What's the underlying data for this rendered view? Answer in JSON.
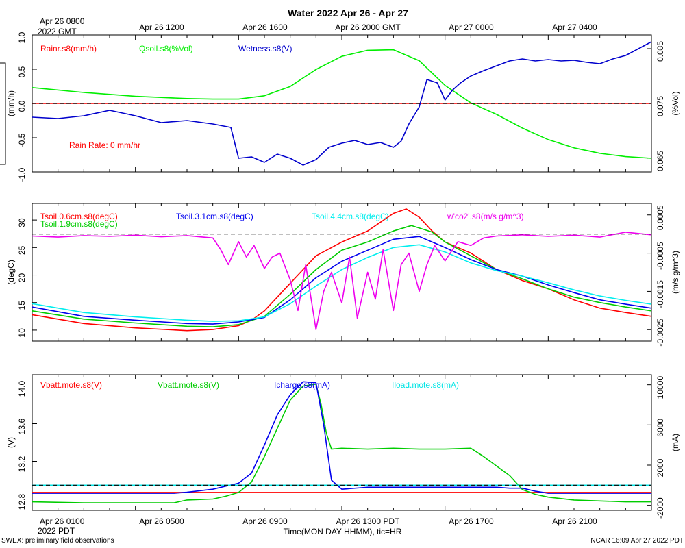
{
  "header": {
    "title": "Water 2022 Apr 26 - Apr 27",
    "top_start_label_1": "Apr 26 0800",
    "top_start_label_2": "2022 GMT",
    "top_ticks": [
      "Apr 26 1200",
      "Apr 26 1600",
      "Apr 26 2000 GMT",
      "Apr 27 0000",
      "Apr 27 0400"
    ]
  },
  "footer": {
    "bottom_start_label_1": "Apr 26 0100",
    "bottom_start_label_2": "2022 PDT",
    "bottom_ticks": [
      "Apr 26 0500",
      "Apr 26 0900",
      "Apr 26 1300 PDT",
      "Apr 26 1700",
      "Apr 26 2100"
    ],
    "xlabel": "Time(MON DAY HHMM), tic=HR",
    "left_note": "SWEX: preliminary field observations",
    "right_note": "NCAR 16:09 Apr 27 2022 PDT"
  },
  "chart_data": [
    {
      "type": "line",
      "panel": "water",
      "x_unit": "hours since Apr 26 0100 PDT",
      "xlim": [
        0,
        24
      ],
      "ylabel_left": "(mm/h)",
      "ylabel_right": "(%Vol)",
      "ylim_left": [
        -1.0,
        1.0
      ],
      "yticks_left": [
        "1.0",
        "0.5",
        "0.0",
        "-0.5",
        "-1.0"
      ],
      "ylim_right": [
        0.0625,
        0.0875
      ],
      "yticks_right": [
        "0.085",
        "0.075",
        "0.065"
      ],
      "annotation": "Rain Rate: 0 mm/hr",
      "series": [
        {
          "name": "Rainr.s8(mm/h)",
          "axis": "left",
          "color": "#ff0000",
          "x": [
            0,
            24
          ],
          "y": [
            0,
            0
          ]
        },
        {
          "name": "Qsoil.s8(%Vol)",
          "axis": "right",
          "color": "#00ee00",
          "x": [
            0,
            2,
            4,
            6,
            7,
            8,
            9,
            10,
            11,
            12,
            13,
            14,
            15,
            16,
            17,
            18,
            19,
            20,
            21,
            22,
            23,
            24
          ],
          "y": [
            0.0779,
            0.077,
            0.0763,
            0.0759,
            0.0758,
            0.0758,
            0.0764,
            0.0781,
            0.0812,
            0.0836,
            0.0847,
            0.0848,
            0.0828,
            0.0783,
            0.0751,
            0.073,
            0.0705,
            0.0684,
            0.0669,
            0.0659,
            0.0653,
            0.065
          ]
        },
        {
          "name": "Wetness.s8(V)",
          "axis": "left",
          "color": "#0000cc",
          "x": [
            0,
            1,
            2,
            3,
            4,
            5,
            6,
            7,
            7.7,
            8,
            8.5,
            9,
            9.5,
            10,
            10.5,
            11,
            11.5,
            12,
            12.5,
            13,
            13.5,
            14,
            14.3,
            14.6,
            15,
            15.3,
            15.7,
            16,
            16.3,
            16.6,
            17,
            17.5,
            18,
            18.5,
            19,
            19.5,
            20,
            20.5,
            21,
            21.5,
            22,
            22.5,
            23,
            23.5,
            24
          ],
          "y": [
            -0.2,
            -0.22,
            -0.18,
            -0.1,
            -0.18,
            -0.28,
            -0.25,
            -0.3,
            -0.35,
            -0.8,
            -0.78,
            -0.86,
            -0.74,
            -0.8,
            -0.9,
            -0.82,
            -0.64,
            -0.58,
            -0.54,
            -0.6,
            -0.57,
            -0.64,
            -0.55,
            -0.3,
            -0.05,
            0.35,
            0.3,
            0.05,
            0.2,
            0.3,
            0.4,
            0.48,
            0.55,
            0.62,
            0.65,
            0.62,
            0.64,
            0.62,
            0.63,
            0.6,
            0.58,
            0.65,
            0.7,
            0.8,
            0.9
          ]
        }
      ]
    },
    {
      "type": "line",
      "panel": "soil_temperature_and_flux",
      "x_unit": "hours since Apr 26 0100 PDT",
      "xlim": [
        0,
        24
      ],
      "ylabel_left": "(degC)",
      "ylabel_right": "(m/s g/m^3)",
      "ylim_left": [
        8.0,
        33.0
      ],
      "yticks_left": [
        "30",
        "25",
        "20",
        "15",
        "10"
      ],
      "ylim_right": [
        -0.0028,
        0.0008
      ],
      "yticks_right": [
        "0.0005",
        "-0.0005",
        "-0.0015",
        "-0.0025"
      ],
      "series": [
        {
          "name": "Tsoil.0.6cm.s8(degC)",
          "axis": "left",
          "color": "#ff0000",
          "x": [
            0,
            2,
            4,
            6,
            7,
            8,
            8.5,
            9,
            10,
            11,
            12,
            13,
            14,
            14.5,
            15,
            15.5,
            16,
            17,
            18,
            19,
            20,
            21,
            22,
            23,
            24
          ],
          "y": [
            12.8,
            11.2,
            10.4,
            9.9,
            10.1,
            10.8,
            11.8,
            13.5,
            18.5,
            23.5,
            26.0,
            28.0,
            31.2,
            32.0,
            30.5,
            28.0,
            26.0,
            24.0,
            21.0,
            19.0,
            17.5,
            15.5,
            14.0,
            13.2,
            12.5
          ]
        },
        {
          "name": "Tsoil.1.9cm.s8(degC)",
          "axis": "left",
          "color": "#00cc00",
          "x": [
            0,
            2,
            4,
            6,
            7,
            8,
            9,
            10,
            11,
            12,
            13,
            14,
            14.7,
            15.5,
            16,
            17,
            18,
            19,
            20,
            21,
            22,
            23,
            24
          ],
          "y": [
            13.5,
            12.0,
            11.3,
            10.7,
            10.6,
            11.0,
            12.5,
            16.5,
            21.0,
            24.5,
            26.0,
            28.0,
            29.0,
            27.8,
            26.0,
            23.5,
            21.0,
            19.3,
            17.5,
            16.0,
            15.0,
            14.2,
            13.5
          ]
        },
        {
          "name": "Tsoil.3.1cm.s8(degC)",
          "axis": "left",
          "color": "#0000ee",
          "x": [
            0,
            2,
            4,
            6,
            7,
            8,
            9,
            10,
            11,
            12,
            13,
            14,
            15,
            16,
            17,
            18,
            19,
            20,
            21,
            22,
            23,
            24
          ],
          "y": [
            14.2,
            12.5,
            11.8,
            11.2,
            11.1,
            11.5,
            12.3,
            15.5,
            19.5,
            22.5,
            24.5,
            26.5,
            27.0,
            25.0,
            22.8,
            21.0,
            19.8,
            18.2,
            16.8,
            15.5,
            14.7,
            14.0
          ]
        },
        {
          "name": "Tsoil.4.4cm.s8(degC)",
          "axis": "left",
          "color": "#00eeee",
          "x": [
            0,
            2,
            4,
            6,
            7,
            8,
            9,
            10,
            11,
            12,
            13,
            14,
            15,
            16,
            17,
            18,
            19,
            20,
            21,
            22,
            23,
            24
          ],
          "y": [
            14.8,
            13.2,
            12.4,
            11.8,
            11.6,
            11.7,
            12.4,
            14.8,
            18.0,
            21.0,
            23.2,
            25.0,
            25.5,
            24.2,
            22.2,
            20.8,
            19.8,
            18.6,
            17.3,
            16.2,
            15.4,
            14.7
          ]
        },
        {
          "name": "w'co2'.s8(m/s g/m^3)",
          "axis": "right",
          "color": "#ee00ee",
          "x": [
            0,
            1,
            2,
            3,
            4,
            5,
            6,
            7,
            7.3,
            7.6,
            8,
            8.3,
            8.6,
            9,
            9.3,
            9.6,
            10,
            10.3,
            10.6,
            11,
            11.3,
            11.6,
            12,
            12.3,
            12.6,
            13,
            13.3,
            13.6,
            14,
            14.3,
            14.6,
            15,
            15.3,
            15.6,
            16,
            16.5,
            17,
            17.5,
            18,
            19,
            20,
            21,
            22,
            23,
            24
          ],
          "y": [
            -5e-05,
            -8e-05,
            -4e-05,
            -6e-05,
            -3e-05,
            -7e-05,
            -4e-05,
            -0.0001,
            -0.0004,
            -0.0008,
            -0.0002,
            -0.0006,
            -0.0003,
            -0.0009,
            -0.0006,
            -0.0005,
            -0.0012,
            -0.002,
            -0.0008,
            -0.0025,
            -0.0015,
            -0.001,
            -0.0018,
            -0.0006,
            -0.0022,
            -0.001,
            -0.0017,
            -0.0004,
            -0.002,
            -0.0008,
            -0.0005,
            -0.0015,
            -0.0008,
            -0.0003,
            -0.0007,
            -0.0002,
            -0.0003,
            -0.0001,
            -5e-05,
            -2e-05,
            -6e-05,
            -3e-05,
            -8e-05,
            5e-05,
            -2e-05
          ]
        }
      ]
    },
    {
      "type": "line",
      "panel": "battery",
      "x_unit": "hours since Apr 26 0100 PDT",
      "xlim": [
        0,
        24
      ],
      "ylabel_left": "(V)",
      "ylabel_right": "(mA)",
      "ylim_left": [
        12.68,
        14.12
      ],
      "yticks_left": [
        "14.0",
        "13.6",
        "13.2",
        "12.8"
      ],
      "ylim_right": [
        -2500,
        11000
      ],
      "yticks_right": [
        "10000",
        "6000",
        "2000",
        "-2000"
      ],
      "series": [
        {
          "name": "Vbatt.mote.s8(V)",
          "axis": "left",
          "color": "#ff0000",
          "x": [
            0,
            24
          ],
          "y": [
            12.87,
            12.87
          ]
        },
        {
          "name": "Vbatt.mote.s8(V)",
          "axis": "left",
          "color": "#00cc00",
          "x": [
            0,
            2,
            4,
            5.5,
            6,
            7,
            7.5,
            8,
            8.5,
            9,
            9.5,
            10,
            10.5,
            11,
            11.2,
            11.4,
            11.6,
            12,
            13,
            14,
            15,
            16,
            17,
            17.5,
            18,
            18.5,
            19,
            19.5,
            20,
            21,
            22,
            23,
            24
          ],
          "y": [
            12.77,
            12.76,
            12.76,
            12.76,
            12.79,
            12.8,
            12.83,
            12.87,
            12.98,
            13.25,
            13.55,
            13.85,
            14.0,
            14.02,
            13.8,
            13.5,
            13.33,
            13.34,
            13.33,
            13.34,
            13.33,
            13.33,
            13.34,
            13.25,
            13.15,
            13.05,
            12.9,
            12.85,
            12.82,
            12.79,
            12.78,
            12.77,
            12.77
          ]
        },
        {
          "name": "Icharge.s8(mA)",
          "axis": "right",
          "color": "#0000ee",
          "x": [
            0,
            4,
            5.5,
            6,
            7,
            8,
            8.5,
            9,
            9.5,
            10,
            10.5,
            11,
            11.3,
            11.6,
            12,
            13,
            14,
            15,
            16,
            17,
            18,
            18.5,
            19,
            19.5,
            20,
            22,
            24
          ],
          "y": [
            -800,
            -800,
            -800,
            -700,
            -400,
            200,
            1200,
            4000,
            7000,
            9000,
            10300,
            10200,
            6000,
            500,
            -400,
            -200,
            -200,
            -200,
            -200,
            -200,
            -200,
            -300,
            -300,
            -600,
            -800,
            -800,
            -800
          ]
        },
        {
          "name": "Iload.mote.s8(mA)",
          "axis": "right",
          "color": "#00e5e5",
          "x": [
            0,
            24
          ],
          "y": [
            0,
            0
          ]
        }
      ]
    }
  ]
}
